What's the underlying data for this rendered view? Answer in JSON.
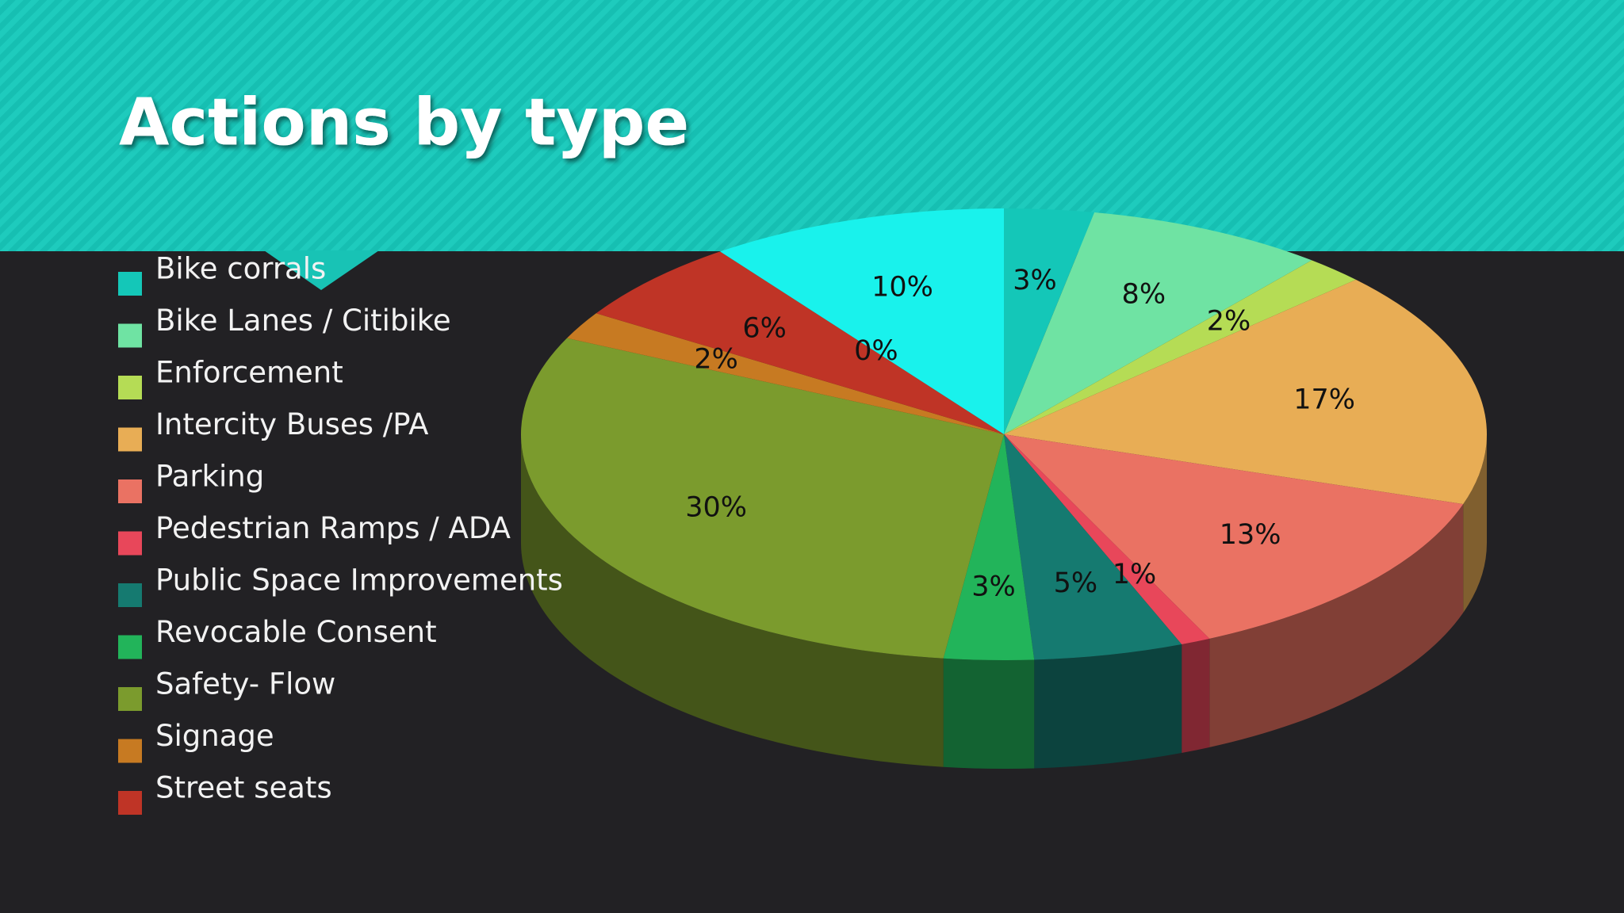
{
  "chart_data": {
    "type": "pie",
    "title": "Actions by type",
    "categories": [
      "Bike corrals",
      "Bike Lanes / Citibike",
      "Enforcement",
      "Intercity Buses /PA",
      "Parking",
      "Pedestrian Ramps / ADA",
      "Public Space Improvements",
      "Revocable Consent",
      "Safety- Flow",
      "Signage",
      "Street seats",
      null,
      null
    ],
    "values": [
      3,
      8,
      2,
      17,
      13,
      1,
      5,
      3,
      30,
      2,
      6,
      0,
      10
    ],
    "value_labels": [
      "3%",
      "8%",
      "2%",
      "17%",
      "13%",
      "1%",
      "5%",
      "3%",
      "30%",
      "2%",
      "6%",
      "0%",
      "10%"
    ],
    "colors": [
      "#14c7b8",
      "#6fe3a3",
      "#b5dc55",
      "#e8ad55",
      "#ea7263",
      "#e8475a",
      "#157a70",
      "#22b45a",
      "#7b9b2d",
      "#c77a22",
      "#bf3426",
      "#d04a2f",
      "#19f2ec"
    ],
    "legend": "left"
  }
}
